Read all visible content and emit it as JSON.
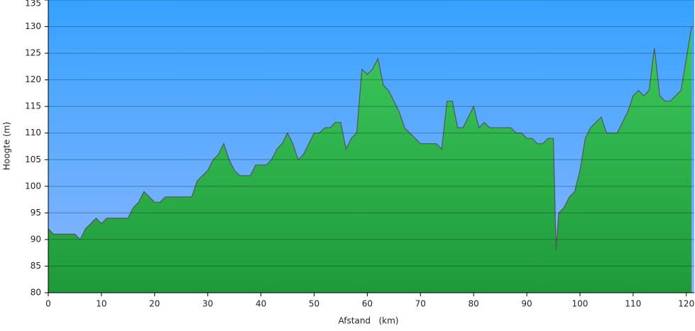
{
  "chart_data": {
    "type": "area",
    "x_label": "Afstand   (km)",
    "y_label": "Hoogte (m)",
    "x": [
      0,
      1,
      2,
      3,
      4,
      5,
      6,
      7,
      8,
      9,
      10,
      11,
      12,
      13,
      14,
      15,
      16,
      17,
      18,
      19,
      20,
      21,
      22,
      23,
      24,
      25,
      26,
      27,
      28,
      29,
      30,
      31,
      32,
      33,
      34,
      35,
      36,
      37,
      38,
      39,
      40,
      41,
      42,
      43,
      44,
      45,
      46,
      47,
      48,
      49,
      50,
      51,
      52,
      53,
      54,
      55,
      56,
      57,
      58,
      59,
      60,
      61,
      62,
      63,
      64,
      65,
      66,
      67,
      68,
      69,
      70,
      71,
      72,
      73,
      74,
      75,
      76,
      77,
      78,
      79,
      80,
      81,
      82,
      83,
      84,
      85,
      86,
      87,
      88,
      89,
      90,
      91,
      92,
      93,
      94,
      95,
      95.5,
      96,
      97,
      98,
      99,
      100,
      101,
      102,
      103,
      104,
      105,
      106,
      107,
      108,
      109,
      110,
      111,
      112,
      113,
      114,
      115,
      116,
      117,
      118,
      119,
      120,
      121
    ],
    "values": [
      92,
      91,
      91,
      91,
      91,
      91,
      90,
      92,
      93,
      94,
      93,
      94,
      94,
      94,
      94,
      94,
      96,
      97,
      99,
      98,
      97,
      97,
      98,
      98,
      98,
      98,
      98,
      98,
      101,
      102,
      103,
      105,
      106,
      108,
      105,
      103,
      102,
      102,
      102,
      104,
      104,
      104,
      105,
      107,
      108,
      110,
      108,
      105,
      106,
      108,
      110,
      110,
      111,
      111,
      112,
      112,
      107,
      109,
      110,
      122,
      121,
      122,
      124,
      119,
      118,
      116,
      114,
      111,
      110,
      109,
      108,
      108,
      108,
      108,
      107,
      116,
      116,
      111,
      111,
      113,
      115,
      111,
      112,
      111,
      111,
      111,
      111,
      111,
      110,
      110,
      109,
      109,
      108,
      108,
      109,
      109,
      88,
      95,
      96,
      98,
      99,
      103,
      109,
      111,
      112,
      113,
      110,
      110,
      110,
      112,
      114,
      117,
      118,
      117,
      118,
      126,
      117,
      116,
      116,
      117,
      118,
      124,
      130
    ],
    "color": "#2db84d",
    "line_color": "#555555",
    "xlim": [
      0,
      121.5
    ],
    "ylim": [
      80,
      135
    ],
    "xticks": [
      0,
      10,
      20,
      30,
      40,
      50,
      60,
      70,
      80,
      90,
      100,
      110,
      120
    ],
    "yticks": [
      80,
      85,
      90,
      95,
      100,
      105,
      110,
      115,
      120,
      125,
      130,
      135
    ],
    "grid": true
  }
}
